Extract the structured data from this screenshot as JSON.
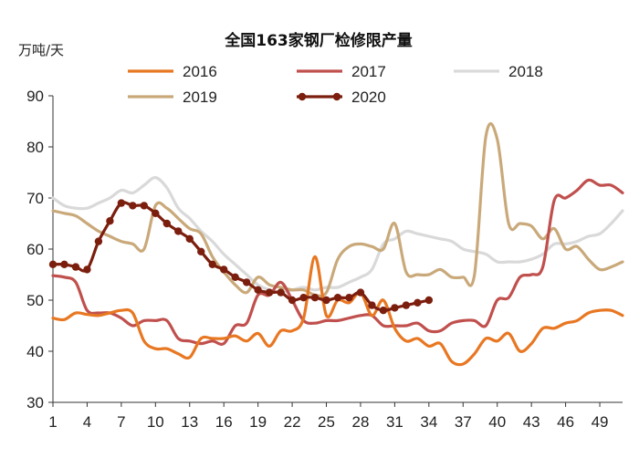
{
  "chart_data": {
    "type": "line",
    "title": "全国163家钢厂检修限产量",
    "ylabel": "万吨/天",
    "xlabel": "",
    "ylim": [
      30,
      90
    ],
    "xlim": [
      1,
      51
    ],
    "y_ticks": [
      30,
      40,
      50,
      60,
      70,
      80,
      90
    ],
    "x_ticks": [
      1,
      4,
      7,
      10,
      13,
      16,
      19,
      22,
      25,
      28,
      31,
      34,
      37,
      40,
      43,
      46,
      49
    ],
    "grid": false,
    "legend": [
      "2016",
      "2017",
      "2018",
      "2019",
      "2020"
    ],
    "series": [
      {
        "name": "2016",
        "color": "#E87722",
        "markers": false,
        "x": [
          1,
          2,
          3,
          4,
          5,
          6,
          7,
          8,
          9,
          10,
          11,
          12,
          13,
          14,
          15,
          16,
          17,
          18,
          19,
          20,
          21,
          22,
          23,
          24,
          25,
          26,
          27,
          28,
          29,
          30,
          31,
          32,
          33,
          34,
          35,
          36,
          37,
          38,
          39,
          40,
          41,
          42,
          43,
          44,
          45,
          46,
          47,
          48,
          49,
          50,
          51
        ],
        "values": [
          46.5,
          46.2,
          47.5,
          47.2,
          47.0,
          47.5,
          48.0,
          47.5,
          42.0,
          40.5,
          40.5,
          39.5,
          38.8,
          42.5,
          42.5,
          42.5,
          43.0,
          42.0,
          43.5,
          41.0,
          44.0,
          44.0,
          46.5,
          58.5,
          47.0,
          50.0,
          49.5,
          51.5,
          47.0,
          50.0,
          44.5,
          42.0,
          42.5,
          41.0,
          41.5,
          38.0,
          37.5,
          39.5,
          42.5,
          42.0,
          43.5,
          40.0,
          41.5,
          44.5,
          44.5,
          45.5,
          46.0,
          47.5,
          48.0,
          48.0,
          47.0
        ]
      },
      {
        "name": "2017",
        "color": "#C0504D",
        "markers": false,
        "x": [
          1,
          2,
          3,
          4,
          5,
          6,
          7,
          8,
          9,
          10,
          11,
          12,
          13,
          14,
          15,
          16,
          17,
          18,
          19,
          20,
          21,
          22,
          23,
          24,
          25,
          26,
          27,
          28,
          29,
          30,
          31,
          32,
          33,
          34,
          35,
          36,
          37,
          38,
          39,
          40,
          41,
          42,
          43,
          44,
          45,
          46,
          47,
          48,
          49,
          50,
          51
        ],
        "values": [
          54.8,
          54.5,
          53.5,
          48.0,
          47.5,
          47.5,
          46.5,
          45.0,
          46.0,
          46.0,
          46.0,
          42.5,
          42.0,
          41.5,
          42.0,
          41.5,
          45.0,
          45.5,
          51.0,
          51.0,
          53.5,
          50.0,
          46.0,
          45.5,
          46.0,
          46.0,
          46.5,
          47.0,
          47.0,
          45.0,
          45.0,
          45.0,
          45.5,
          44.0,
          44.0,
          45.5,
          46.0,
          46.0,
          45.0,
          50.0,
          50.5,
          54.5,
          55.0,
          56.5,
          69.5,
          70.0,
          71.5,
          73.5,
          72.5,
          72.5,
          71.0
        ]
      },
      {
        "name": "2018",
        "color": "#D9D9D9",
        "markers": false,
        "x": [
          1,
          2,
          3,
          4,
          5,
          6,
          7,
          8,
          9,
          10,
          11,
          12,
          13,
          14,
          15,
          16,
          17,
          18,
          19,
          20,
          21,
          22,
          23,
          24,
          25,
          26,
          27,
          28,
          29,
          30,
          31,
          32,
          33,
          34,
          35,
          36,
          37,
          38,
          39,
          40,
          41,
          42,
          43,
          44,
          45,
          46,
          47,
          48,
          49,
          50,
          51
        ],
        "values": [
          70.0,
          68.5,
          68.0,
          68.0,
          69.0,
          70.0,
          71.5,
          71.0,
          72.5,
          74.0,
          72.0,
          68.0,
          66.0,
          63.5,
          61.5,
          59.0,
          57.0,
          55.0,
          53.0,
          52.0,
          51.5,
          52.0,
          52.5,
          52.0,
          52.5,
          52.5,
          53.5,
          54.5,
          56.0,
          61.0,
          62.0,
          63.5,
          63.0,
          62.5,
          62.0,
          61.5,
          60.0,
          59.5,
          59.0,
          57.5,
          57.5,
          57.5,
          58.0,
          59.0,
          61.0,
          61.0,
          61.5,
          62.5,
          63.0,
          65.0,
          67.5
        ]
      },
      {
        "name": "2019",
        "color": "#C9A97A",
        "markers": false,
        "x": [
          1,
          2,
          3,
          4,
          5,
          6,
          7,
          8,
          9,
          10,
          11,
          12,
          13,
          14,
          15,
          16,
          17,
          18,
          19,
          20,
          21,
          22,
          23,
          24,
          25,
          26,
          27,
          28,
          29,
          30,
          31,
          32,
          33,
          34,
          35,
          36,
          37,
          38,
          39,
          40,
          41,
          42,
          43,
          44,
          45,
          46,
          47,
          48,
          49,
          50,
          51
        ],
        "values": [
          67.5,
          67.0,
          66.5,
          65.0,
          63.5,
          62.5,
          61.5,
          61.0,
          60.0,
          68.5,
          68.0,
          66.0,
          64.0,
          63.0,
          58.5,
          55.5,
          53.0,
          51.5,
          54.5,
          53.0,
          52.5,
          52.0,
          52.0,
          51.0,
          51.5,
          58.0,
          60.5,
          61.0,
          60.5,
          60.0,
          65.0,
          55.5,
          55.0,
          55.0,
          56.0,
          54.5,
          54.5,
          55.0,
          82.0,
          81.5,
          65.0,
          65.0,
          64.5,
          62.0,
          64.0,
          60.0,
          60.5,
          58.0,
          56.0,
          56.5,
          57.5
        ]
      },
      {
        "name": "2020",
        "color": "#7B1E0E",
        "markers": true,
        "x": [
          1,
          2,
          3,
          4,
          5,
          6,
          7,
          8,
          9,
          10,
          11,
          12,
          13,
          14,
          15,
          16,
          17,
          18,
          19,
          20,
          21,
          22,
          23,
          24,
          25,
          26,
          27,
          28,
          29,
          30,
          31,
          32,
          33,
          34
        ],
        "values": [
          57.0,
          57.0,
          56.5,
          56.0,
          61.5,
          65.5,
          69.0,
          68.5,
          68.5,
          67.0,
          65.0,
          63.5,
          62.0,
          59.5,
          57.0,
          56.0,
          54.5,
          53.5,
          52.0,
          51.5,
          51.5,
          50.0,
          50.5,
          50.5,
          50.0,
          50.5,
          50.5,
          51.5,
          49.0,
          48.0,
          48.5,
          49.0,
          49.5,
          50.0
        ]
      }
    ]
  }
}
